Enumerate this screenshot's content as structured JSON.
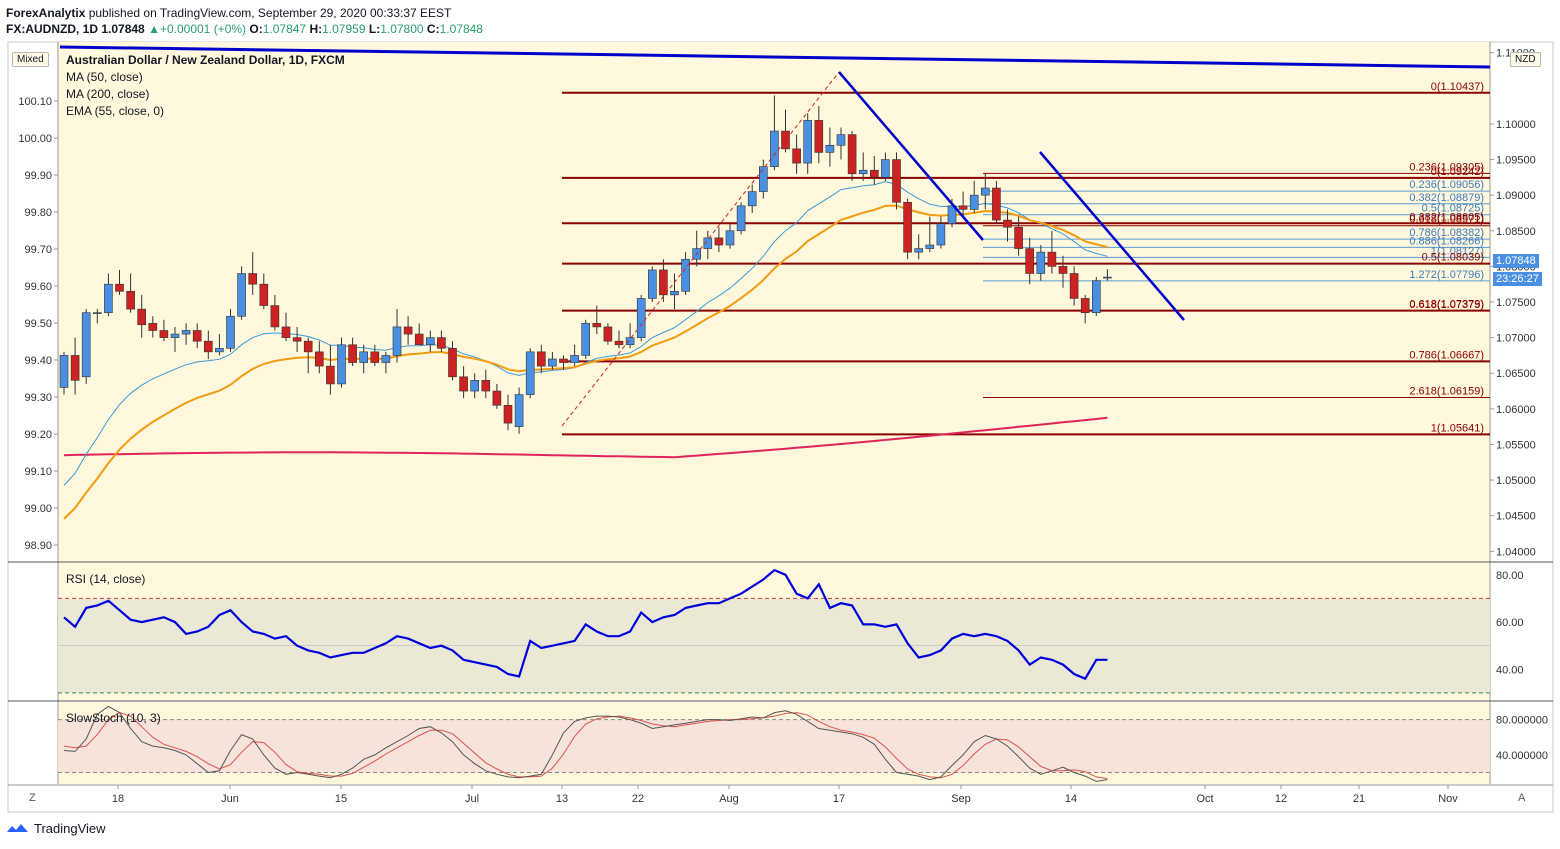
{
  "header": {
    "author": "ForexAnalytix",
    "published": "published on TradingView.com, September 29, 2020 00:33:37 EEST",
    "symbol": "FX:AUDNZD, 1D",
    "last": "1.07848",
    "change": "+0.00001 (+0%)",
    "o_label": "O:",
    "o": "1.07847",
    "h_label": "H:",
    "h": "1.07959",
    "l_label": "L:",
    "l": "1.07800",
    "c_label": "C:",
    "c": "1.07848"
  },
  "mode_badge": "Mixed",
  "currency_badge": "NZD",
  "legend": {
    "title": "Australian Dollar / New Zealand Dollar, 1D, FXCM",
    "ma50": "MA (50, close)",
    "ma200": "MA (200, close)",
    "ema55": "EMA (55, close, 0)"
  },
  "rsi_label": "RSI (14, close)",
  "stoch_label": "SlowStoch (10, 3)",
  "price_tag": "1.07848",
  "countdown_tag": "23:26:27",
  "footer_brand": "TradingView",
  "corner_left": "Z",
  "corner_right": "A",
  "colors": {
    "bg": "#fff8dc",
    "bull": "#4a90e2",
    "bear": "#cc2222",
    "ma50": "#3a9ad9",
    "ma200": "#e0245e",
    "ema55": "#f39c12",
    "fib": "#8b0000",
    "trend": "#0000cc",
    "rsi": "#0000dd",
    "stoch_k": "#555555",
    "stoch_d": "#e05050"
  },
  "chart_data": [
    {
      "type": "candlestick",
      "title": "Australian Dollar / New Zealand Dollar, 1D, FXCM",
      "right_axis": {
        "ticks": [
          "1.11000",
          "1.10000",
          "1.09500",
          "1.09000",
          "1.08500",
          "1.08000",
          "1.07500",
          "1.07000",
          "1.06500",
          "1.06000",
          "1.05500",
          "1.05000",
          "1.04500",
          "1.04000"
        ],
        "range": [
          1.0385,
          1.1115
        ]
      },
      "left_axis": {
        "ticks": [
          "100.10",
          "100.00",
          "99.90",
          "99.80",
          "99.70",
          "99.60",
          "99.50",
          "99.40",
          "99.30",
          "99.20",
          "99.10",
          "99.00",
          "98.90"
        ]
      },
      "x_ticks": [
        "18",
        "Jun",
        "15",
        "Jul",
        "13",
        "22",
        "Aug",
        "17",
        "Sep",
        "14",
        "Oct",
        "12",
        "21",
        "Nov"
      ],
      "candles": [
        [
          1.063,
          1.068,
          1.062,
          1.0675
        ],
        [
          1.0675,
          1.07,
          1.062,
          1.064
        ],
        [
          1.0645,
          1.074,
          1.0635,
          1.0735
        ],
        [
          1.0735,
          1.074,
          1.072,
          1.0735
        ],
        [
          1.0735,
          1.079,
          1.073,
          1.0775
        ],
        [
          1.0775,
          1.0795,
          1.076,
          1.0765
        ],
        [
          1.0765,
          1.079,
          1.0735,
          1.074
        ],
        [
          1.074,
          1.076,
          1.07,
          1.0718
        ],
        [
          1.072,
          1.073,
          1.07,
          1.071
        ],
        [
          1.071,
          1.0725,
          1.0695,
          1.07
        ],
        [
          1.07,
          1.0715,
          1.068,
          1.0705
        ],
        [
          1.0705,
          1.072,
          1.069,
          1.071
        ],
        [
          1.071,
          1.072,
          1.0685,
          1.0695
        ],
        [
          1.0695,
          1.071,
          1.067,
          1.068
        ],
        [
          1.068,
          1.0705,
          1.0675,
          1.0685
        ],
        [
          1.0685,
          1.074,
          1.068,
          1.073
        ],
        [
          1.073,
          1.08,
          1.0725,
          1.079
        ],
        [
          1.079,
          1.082,
          1.076,
          1.0775
        ],
        [
          1.0775,
          1.079,
          1.074,
          1.0745
        ],
        [
          1.0745,
          1.076,
          1.071,
          1.0715
        ],
        [
          1.0715,
          1.0735,
          1.0695,
          1.07
        ],
        [
          1.07,
          1.0715,
          1.068,
          1.0695
        ],
        [
          1.0695,
          1.07,
          1.065,
          1.068
        ],
        [
          1.068,
          1.0695,
          1.065,
          1.066
        ],
        [
          1.066,
          1.069,
          1.062,
          1.0635
        ],
        [
          1.0635,
          1.07,
          1.063,
          1.069
        ],
        [
          1.069,
          1.07,
          1.066,
          1.0665
        ],
        [
          1.0665,
          1.069,
          1.065,
          1.068
        ],
        [
          1.068,
          1.069,
          1.066,
          1.0665
        ],
        [
          1.0665,
          1.068,
          1.065,
          1.0675
        ],
        [
          1.0675,
          1.074,
          1.0665,
          1.0715
        ],
        [
          1.0715,
          1.073,
          1.069,
          1.0705
        ],
        [
          1.0705,
          1.072,
          1.069,
          1.069
        ],
        [
          1.069,
          1.071,
          1.068,
          1.07
        ],
        [
          1.07,
          1.071,
          1.068,
          1.0685
        ],
        [
          1.0685,
          1.0695,
          1.064,
          1.0645
        ],
        [
          1.0645,
          1.066,
          1.0615,
          1.0625
        ],
        [
          1.0625,
          1.065,
          1.0615,
          1.064
        ],
        [
          1.064,
          1.0655,
          1.0615,
          1.0625
        ],
        [
          1.0625,
          1.0635,
          1.06,
          1.0605
        ],
        [
          1.0605,
          1.062,
          1.057,
          1.058
        ],
        [
          1.0575,
          1.063,
          1.0565,
          1.062
        ],
        [
          1.062,
          1.0685,
          1.0615,
          1.068
        ],
        [
          1.068,
          1.069,
          1.065,
          1.066
        ],
        [
          1.066,
          1.068,
          1.0655,
          1.067
        ],
        [
          1.067,
          1.0675,
          1.0655,
          1.0665
        ],
        [
          1.0665,
          1.069,
          1.066,
          1.0675
        ],
        [
          1.0675,
          1.0725,
          1.067,
          1.072
        ],
        [
          1.072,
          1.0745,
          1.0705,
          1.0715
        ],
        [
          1.0715,
          1.072,
          1.069,
          1.0695
        ],
        [
          1.0695,
          1.071,
          1.0685,
          1.069
        ],
        [
          1.069,
          1.072,
          1.0685,
          1.07
        ],
        [
          1.07,
          1.076,
          1.0695,
          1.0755
        ],
        [
          1.0755,
          1.08,
          1.075,
          1.0795
        ],
        [
          1.0795,
          1.081,
          1.075,
          1.076
        ],
        [
          1.076,
          1.079,
          1.074,
          1.0765
        ],
        [
          1.0765,
          1.082,
          1.076,
          1.081
        ],
        [
          1.081,
          1.085,
          1.08,
          1.0825
        ],
        [
          1.0825,
          1.085,
          1.081,
          1.084
        ],
        [
          1.084,
          1.0855,
          1.082,
          1.083
        ],
        [
          1.083,
          1.086,
          1.0825,
          1.085
        ],
        [
          1.085,
          1.089,
          1.0845,
          1.0885
        ],
        [
          1.0885,
          1.0915,
          1.0875,
          1.0905
        ],
        [
          1.0905,
          1.095,
          1.0895,
          1.094
        ],
        [
          1.094,
          1.104,
          1.0935,
          1.099
        ],
        [
          1.099,
          1.102,
          1.096,
          1.0965
        ],
        [
          1.0965,
          1.0985,
          1.093,
          1.0945
        ],
        [
          1.0945,
          1.1015,
          1.093,
          1.1005
        ],
        [
          1.1005,
          1.1025,
          1.0945,
          1.096
        ],
        [
          1.096,
          1.0995,
          1.094,
          1.097
        ],
        [
          1.097,
          1.0995,
          1.095,
          1.0985
        ],
        [
          1.0985,
          1.099,
          1.092,
          1.093
        ],
        [
          1.093,
          1.096,
          1.092,
          1.0935
        ],
        [
          1.0935,
          1.0955,
          1.0915,
          1.0925
        ],
        [
          1.0925,
          1.096,
          1.092,
          1.095
        ],
        [
          1.095,
          1.096,
          1.088,
          1.089
        ],
        [
          1.089,
          1.0895,
          1.081,
          1.082
        ],
        [
          1.082,
          1.0845,
          1.081,
          1.0825
        ],
        [
          1.0825,
          1.087,
          1.082,
          1.083
        ],
        [
          1.083,
          1.087,
          1.0825,
          1.086
        ],
        [
          1.086,
          1.0895,
          1.0855,
          1.0885
        ],
        [
          1.0885,
          1.0905,
          1.087,
          1.088
        ],
        [
          1.088,
          1.092,
          1.0875,
          1.09
        ],
        [
          1.09,
          1.093,
          1.088,
          1.091
        ],
        [
          1.091,
          1.092,
          1.086,
          1.0865
        ],
        [
          1.0865,
          1.088,
          1.0835,
          1.0855
        ],
        [
          1.0855,
          1.087,
          1.0815,
          1.0825
        ],
        [
          1.0825,
          1.084,
          1.0775,
          1.079
        ],
        [
          1.079,
          1.083,
          1.078,
          1.082
        ],
        [
          1.082,
          1.085,
          1.079,
          1.08
        ],
        [
          1.08,
          1.0815,
          1.077,
          1.079
        ],
        [
          1.079,
          1.08,
          1.0745,
          1.0755
        ],
        [
          1.0755,
          1.076,
          1.072,
          1.0735
        ],
        [
          1.0735,
          1.0785,
          1.073,
          1.078
        ],
        [
          1.0784,
          1.0796,
          1.078,
          1.0785
        ]
      ],
      "fib_levels": [
        {
          "label": "0(1.10437)",
          "value": 1.10437
        },
        {
          "label": "0(1.09242)",
          "value": 1.09242
        },
        {
          "label": "0.236(1.09305)",
          "value": 1.09305
        },
        {
          "label": "0.236(1.09056)",
          "value": 1.09056
        },
        {
          "label": "0.382(1.08879)",
          "value": 1.08879
        },
        {
          "label": "0.5(1.08725)",
          "value": 1.08725
        },
        {
          "label": "0.618(1.08571)",
          "value": 1.08571
        },
        {
          "label": "0.382(1.08605)",
          "value": 1.08605
        },
        {
          "label": "0.786(1.08382)",
          "value": 1.08382
        },
        {
          "label": "0.886(1.08266)",
          "value": 1.08266
        },
        {
          "label": "1(1.08127)",
          "value": 1.08127
        },
        {
          "label": "0.5(1.08039)",
          "value": 1.08039
        },
        {
          "label": "1.272(1.07796)",
          "value": 1.07796
        },
        {
          "label": "0.618(1.07379)",
          "value": 1.07379
        },
        {
          "label": "0.618(1.07375)",
          "value": 1.07375
        },
        {
          "label": "0.786(1.06667)",
          "value": 1.06667
        },
        {
          "label": "2.618(1.06159)",
          "value": 1.06159
        },
        {
          "label": "1(1.05641)",
          "value": 1.05641
        }
      ]
    },
    {
      "type": "line",
      "title": "RSI (14, close)",
      "right_axis": {
        "ticks": [
          "80.00",
          "60.00",
          "40.00"
        ]
      },
      "levels": [
        70,
        30
      ],
      "values": [
        62,
        58,
        66,
        67,
        69,
        65,
        61,
        60,
        61,
        62,
        60,
        55,
        56,
        58,
        63,
        65,
        60,
        56,
        55,
        53,
        54,
        50,
        48,
        47,
        45,
        46,
        47,
        47,
        49,
        51,
        54,
        53,
        51,
        49,
        50,
        48,
        44,
        43,
        42,
        41,
        38,
        37,
        52,
        49,
        50,
        51,
        52,
        59,
        56,
        54,
        54,
        56,
        64,
        60,
        62,
        63,
        66,
        67,
        68,
        68,
        70,
        72,
        75,
        78,
        82,
        80,
        72,
        70,
        76,
        66,
        68,
        67,
        59,
        59,
        58,
        59,
        51,
        45,
        46,
        48,
        53,
        55,
        54,
        55,
        54,
        52,
        48,
        42,
        45,
        44,
        42,
        38,
        36,
        44,
        44
      ],
      "ylim": [
        27,
        85
      ]
    },
    {
      "type": "line",
      "title": "SlowStoch (10, 3)",
      "right_axis": {
        "ticks": [
          "80.000000",
          "40.000000"
        ]
      },
      "levels": [
        80,
        20
      ],
      "series": [
        {
          "values": [
            45,
            44,
            58,
            86,
            95,
            88,
            70,
            55,
            50,
            48,
            45,
            40,
            30,
            20,
            22,
            45,
            63,
            58,
            40,
            25,
            18,
            20,
            18,
            16,
            14,
            18,
            25,
            35,
            40,
            48,
            55,
            62,
            70,
            72,
            65,
            55,
            40,
            30,
            22,
            18,
            15,
            14,
            16,
            18,
            40,
            65,
            78,
            82,
            84,
            84,
            83,
            80,
            76,
            70,
            72,
            74,
            76,
            78,
            80,
            80,
            79,
            81,
            83,
            82,
            88,
            90,
            86,
            78,
            70,
            68,
            66,
            64,
            60,
            52,
            35,
            20,
            18,
            16,
            12,
            15,
            28,
            40,
            55,
            62,
            58,
            50,
            38,
            25,
            18,
            22,
            26,
            20,
            16,
            10,
            12
          ]
        },
        {
          "values": [
            50,
            48,
            50,
            63,
            80,
            88,
            84,
            72,
            60,
            52,
            48,
            44,
            38,
            30,
            24,
            29,
            43,
            55,
            54,
            43,
            29,
            21,
            19,
            18,
            16,
            16,
            19,
            26,
            33,
            41,
            48,
            55,
            62,
            68,
            68,
            64,
            53,
            42,
            31,
            24,
            18,
            15,
            15,
            16,
            25,
            41,
            61,
            75,
            81,
            83,
            84,
            82,
            79,
            75,
            73,
            72,
            74,
            76,
            78,
            79,
            80,
            80,
            81,
            82,
            84,
            87,
            88,
            85,
            78,
            72,
            68,
            66,
            63,
            59,
            49,
            36,
            24,
            18,
            15,
            14,
            18,
            28,
            41,
            52,
            58,
            57,
            49,
            38,
            27,
            22,
            22,
            23,
            21,
            15,
            13
          ]
        }
      ],
      "ylim": [
        7,
        100
      ]
    }
  ]
}
